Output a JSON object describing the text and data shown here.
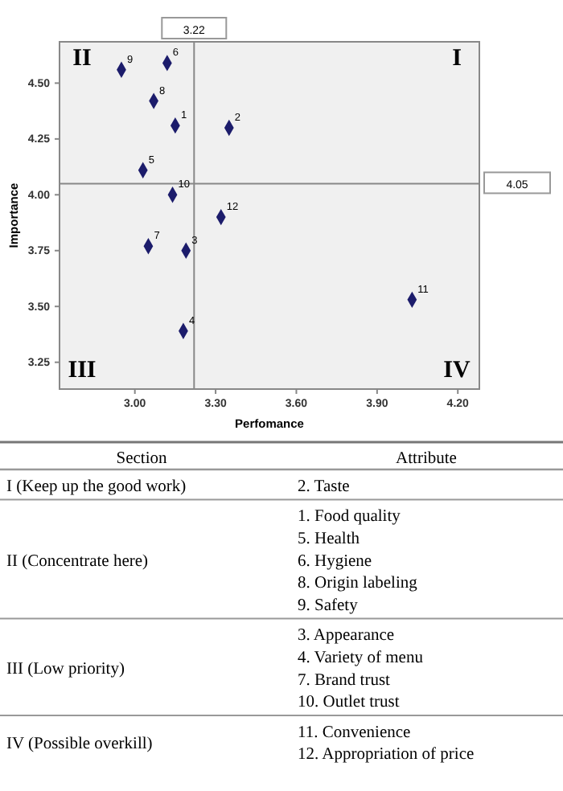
{
  "chart_data": {
    "type": "scatter",
    "xlabel": "Perfomance",
    "ylabel": "Importance",
    "x": [
      3.15,
      3.35,
      3.19,
      3.18,
      3.03,
      3.12,
      3.05,
      3.07,
      2.95,
      3.14,
      4.03,
      3.32
    ],
    "values": [
      4.31,
      4.3,
      3.75,
      3.39,
      4.11,
      4.59,
      3.77,
      4.42,
      4.56,
      4.0,
      3.53,
      3.9
    ],
    "color": "#1c1c6b",
    "marker": "diamond",
    "xlim": [
      2.72,
      4.28
    ],
    "xticks": [
      {
        "value": 3.0,
        "label": "3.00"
      },
      {
        "value": 3.3,
        "label": "3.30"
      },
      {
        "value": 3.6,
        "label": "3.60"
      },
      {
        "value": 3.9,
        "label": "3.90"
      },
      {
        "value": 4.2,
        "label": "4.20"
      }
    ],
    "ylim": [
      3.13,
      4.685
    ],
    "yticks": [
      {
        "value": 3.25,
        "label": "3.25"
      },
      {
        "value": 3.5,
        "label": "3.50"
      },
      {
        "value": 3.75,
        "label": "3.75"
      },
      {
        "value": 4.0,
        "label": "4.00"
      },
      {
        "value": 4.25,
        "label": "4.25"
      },
      {
        "value": 4.5,
        "label": "4.50"
      }
    ],
    "ref_lines": [
      {
        "axis": "x",
        "value": 3.22,
        "label": "3.22",
        "color": "#888888"
      },
      {
        "axis": "y",
        "value": 4.05,
        "label": "4.05",
        "color": "#888888"
      }
    ],
    "grid": false,
    "annotations": [
      "II",
      "I",
      "III",
      "IV",
      {
        "text": "1",
        "x": 3.15,
        "y": 4.31
      },
      {
        "text": "2",
        "x": 3.35,
        "y": 4.3
      },
      {
        "text": "3",
        "x": 3.19,
        "y": 3.75
      },
      {
        "text": "4",
        "x": 3.18,
        "y": 3.39
      },
      {
        "text": "5",
        "x": 3.03,
        "y": 4.11
      },
      {
        "text": "6",
        "x": 3.12,
        "y": 4.59
      },
      {
        "text": "7",
        "x": 3.05,
        "y": 3.77
      },
      {
        "text": "8",
        "x": 3.07,
        "y": 4.42
      },
      {
        "text": "9",
        "x": 2.95,
        "y": 4.56
      },
      {
        "text": "10",
        "x": 3.14,
        "y": 4.0
      },
      {
        "text": "11",
        "x": 4.03,
        "y": 3.53
      },
      {
        "text": "12",
        "x": 3.32,
        "y": 3.9
      },
      "Section",
      "Attribute",
      "I (Keep up the good work)",
      "2. Taste",
      "II (Concentrate here)",
      "1. Food quality\n5. Health\n6. Hygiene\n8. Origin labeling\n9. Safety",
      "III (Low priority)",
      "3. Appearance\n4. Variety of menu\n7. Brand trust\n10. Outlet trust",
      "IV (Possible overkill)",
      "11. Convenience\n12. Appropriation of price"
    ]
  }
}
